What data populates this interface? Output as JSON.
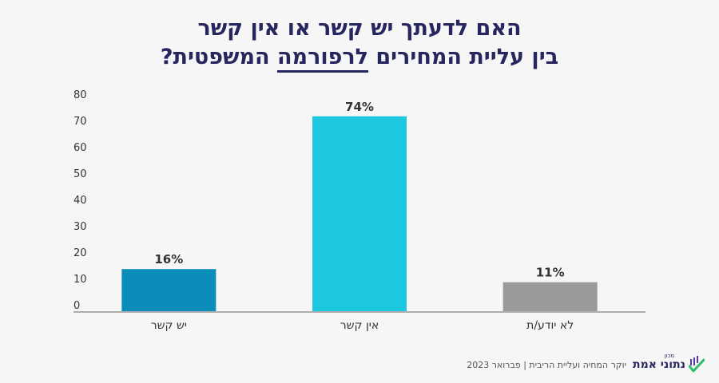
{
  "title": {
    "line1": "האם לדעתך יש קשר או אין קשר",
    "line2_pre": "בין עליית המחירים ",
    "line2_highlight": "לרפורמה",
    "line2_post": " המשפטית?"
  },
  "chart_data": {
    "type": "bar",
    "categories": [
      "יש קשר",
      "אין קשר",
      "לא יודע/ת"
    ],
    "values": [
      16,
      74,
      11
    ],
    "value_labels": [
      "16%",
      "74%",
      "11%"
    ],
    "colors": [
      "#0a8db8",
      "#1cc8df",
      "#9a9a9a"
    ],
    "ylim": [
      0,
      80
    ],
    "yticks": [
      0,
      10,
      20,
      30,
      40,
      50,
      60,
      70,
      80
    ],
    "xlabel": "",
    "ylabel": "",
    "grid": false,
    "legend": "none"
  },
  "footer": {
    "source": "יוקר המחיה ועליית הריבית | פברואר 2023",
    "brand": "נתוני אמת",
    "brand_small": "מכון"
  },
  "colors": {
    "title": "#27265f",
    "axis": "#333333",
    "background": "#f6f6f6",
    "check_green": "#2bbf6a",
    "check_purple": "#5b3a9b"
  }
}
